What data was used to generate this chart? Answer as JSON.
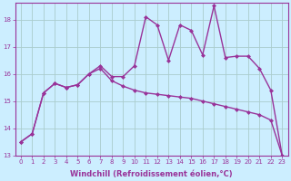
{
  "xlabel": "Windchill (Refroidissement éolien,°C)",
  "background_color": "#cceeff",
  "line_color": "#993399",
  "grid_color": "#aacccc",
  "x_data": [
    0,
    1,
    2,
    3,
    4,
    5,
    6,
    7,
    8,
    9,
    10,
    11,
    12,
    13,
    14,
    15,
    16,
    17,
    18,
    19,
    20,
    21,
    22,
    23
  ],
  "line1_y": [
    13.5,
    13.8,
    15.3,
    15.65,
    15.5,
    15.6,
    16.0,
    16.2,
    15.75,
    15.55,
    15.4,
    15.3,
    15.25,
    15.2,
    15.15,
    15.1,
    15.0,
    14.9,
    14.8,
    14.7,
    14.6,
    14.5,
    14.3,
    13.0
  ],
  "line2_y": [
    13.5,
    13.8,
    15.3,
    15.65,
    15.5,
    15.6,
    16.0,
    16.3,
    15.9,
    15.9,
    16.3,
    18.1,
    17.8,
    16.5,
    17.8,
    17.6,
    16.7,
    18.5,
    16.6,
    16.65,
    16.65,
    16.2,
    15.4,
    13.0
  ],
  "ylim": [
    13,
    18.6
  ],
  "xlim": [
    -0.5,
    23.5
  ],
  "yticks": [
    13,
    14,
    15,
    16,
    17,
    18
  ],
  "xticks": [
    0,
    1,
    2,
    3,
    4,
    5,
    6,
    7,
    8,
    9,
    10,
    11,
    12,
    13,
    14,
    15,
    16,
    17,
    18,
    19,
    20,
    21,
    22,
    23
  ],
  "marker": "D",
  "markersize": 2,
  "linewidth": 1.0,
  "tick_fontsize": 5,
  "label_fontsize": 6
}
